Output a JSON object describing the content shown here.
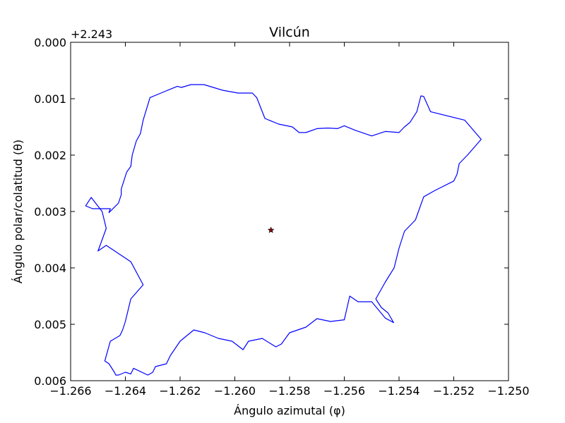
{
  "chart_data": {
    "type": "line",
    "title": "Vilcún",
    "xlabel": "Ángulo azimutal (φ)",
    "ylabel": "Ángulo polar/colatitud (θ)",
    "y_offset_label": "+2.243",
    "xlim": [
      -1.266,
      -1.25
    ],
    "ylim": [
      0.006,
      0.0
    ],
    "y_inverted": true,
    "x_ticks": [
      -1.266,
      -1.264,
      -1.262,
      -1.26,
      -1.258,
      -1.256,
      -1.254,
      -1.252,
      -1.25
    ],
    "x_tick_labels": [
      "−1.266",
      "−1.264",
      "−1.262",
      "−1.260",
      "−1.258",
      "−1.256",
      "−1.254",
      "−1.252",
      "−1.250"
    ],
    "y_ticks": [
      0.0,
      0.001,
      0.002,
      0.003,
      0.004,
      0.005,
      0.006
    ],
    "y_tick_labels": [
      "0.000",
      "0.001",
      "0.002",
      "0.003",
      "0.004",
      "0.005",
      "0.006"
    ],
    "grid": false,
    "colors": {
      "boundary": "#0000ff",
      "center_fill": "#8b0000",
      "center_edge": "#000000"
    },
    "series": [
      {
        "marker": "line",
        "x": [
          -1.26113,
          -1.26045,
          -1.25988,
          -1.25936,
          -1.2592,
          -1.2589,
          -1.2584,
          -1.2579,
          -1.25765,
          -1.2574,
          -1.257,
          -1.2566,
          -1.25625,
          -1.256,
          -1.2556,
          -1.255,
          -1.2545,
          -1.254,
          -1.2538,
          -1.2536,
          -1.25335,
          -1.2532,
          -1.2531,
          -1.25285,
          -1.2516,
          -1.251,
          -1.2515,
          -1.2518,
          -1.25188,
          -1.252,
          -1.2527,
          -1.2531,
          -1.2534,
          -1.2536,
          -1.2538,
          -1.254,
          -1.25418,
          -1.2545,
          -1.25485,
          -1.25465,
          -1.2544,
          -1.2542,
          -1.2545,
          -1.255,
          -1.2555,
          -1.2558,
          -1.256,
          -1.2565,
          -1.257,
          -1.2574,
          -1.258,
          -1.2583,
          -1.2585,
          -1.259,
          -1.2595,
          -1.2597,
          -1.2601,
          -1.2606,
          -1.2611,
          -1.2615,
          -1.262,
          -1.26235,
          -1.2625,
          -1.2629,
          -1.263,
          -1.26318,
          -1.2637,
          -1.2638,
          -1.264,
          -1.26425,
          -1.26435,
          -1.2644,
          -1.2646,
          -1.26475,
          -1.26455,
          -1.2642,
          -1.2641,
          -1.264,
          -1.2638,
          -1.26335,
          -1.2638,
          -1.2647,
          -1.265,
          -1.2647,
          -1.26485,
          -1.26525,
          -1.26545,
          -1.2652,
          -1.2651,
          -1.26455,
          -1.2646,
          -1.26425,
          -1.26415,
          -1.26415,
          -1.26395,
          -1.2638,
          -1.26375,
          -1.2636,
          -1.26345,
          -1.26335,
          -1.2631,
          -1.2627,
          -1.26235,
          -1.2621,
          -1.26195,
          -1.2616,
          -1.2614,
          -1.26113
        ],
        "y": [
          0.00075,
          0.00085,
          0.0009,
          0.0009,
          0.00098,
          0.00135,
          0.00145,
          0.0015,
          0.0016,
          0.0016,
          0.00153,
          0.00152,
          0.00153,
          0.00148,
          0.00156,
          0.00166,
          0.00158,
          0.0016,
          0.0015,
          0.00142,
          0.00123,
          0.00095,
          0.00096,
          0.00123,
          0.00138,
          0.00172,
          0.002,
          0.00215,
          0.00234,
          0.00246,
          0.00263,
          0.00274,
          0.00315,
          0.00325,
          0.00335,
          0.00365,
          0.004,
          0.00425,
          0.00455,
          0.0047,
          0.0048,
          0.00497,
          0.00489,
          0.0046,
          0.0046,
          0.0045,
          0.00492,
          0.00495,
          0.0049,
          0.00505,
          0.00515,
          0.00535,
          0.0054,
          0.00525,
          0.0053,
          0.00545,
          0.0053,
          0.00525,
          0.00515,
          0.0051,
          0.0053,
          0.00555,
          0.0057,
          0.00575,
          0.00585,
          0.0059,
          0.00578,
          0.00588,
          0.00585,
          0.0059,
          0.0059,
          0.00585,
          0.0057,
          0.00565,
          0.0053,
          0.0052,
          0.0051,
          0.00495,
          0.00455,
          0.0043,
          0.00389,
          0.0036,
          0.0037,
          0.0033,
          0.003,
          0.00275,
          0.0029,
          0.00295,
          0.00295,
          0.00295,
          0.00302,
          0.00285,
          0.0027,
          0.0026,
          0.0023,
          0.0022,
          0.002,
          0.00175,
          0.00162,
          0.00138,
          0.00098,
          0.0009,
          0.00083,
          0.00078,
          0.0008,
          0.00075,
          0.00075,
          0.00075
        ]
      },
      {
        "marker": "star",
        "x": [
          -1.25868
        ],
        "y": [
          0.00333
        ]
      }
    ]
  }
}
